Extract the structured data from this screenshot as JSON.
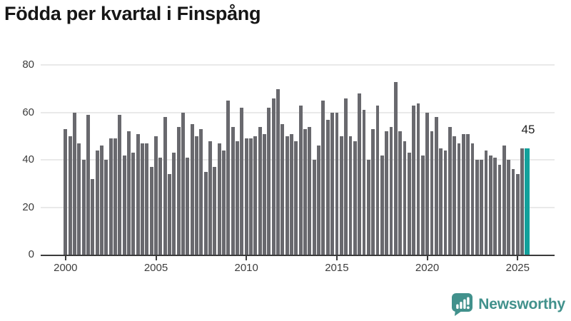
{
  "title": "Födda per kvartal i Finspång",
  "annotation": {
    "value": "45"
  },
  "footer": {
    "brand": "Newsworthy"
  },
  "colors": {
    "bar": "#69696e",
    "highlight": "#12a19c",
    "grid": "#e9e9e9",
    "axis": "#3b3b3b",
    "brand_teal": "#41918c",
    "title_text": "#161616"
  },
  "icons": {
    "footer_logo": "newsworthy-speech-bubble-bar-chart-icon"
  },
  "chart_data": {
    "type": "bar",
    "title": "Födda per kvartal i Finspång",
    "xlabel": "",
    "ylabel": "",
    "x_unit": "quarter",
    "start_year": 2000,
    "start_quarter": 1,
    "x_tick_labels": [
      "2000",
      "2005",
      "2010",
      "2015",
      "2020",
      "2025"
    ],
    "y_ticks": [
      0,
      20,
      40,
      60,
      80
    ],
    "ylim": [
      0,
      80
    ],
    "grid": true,
    "highlight_last_bar": true,
    "last_bar_label": "45",
    "series": [
      {
        "name": "Födda per kvartal",
        "values": [
          53,
          50,
          60,
          47,
          40,
          59,
          32,
          44,
          46,
          40,
          49,
          49,
          59,
          42,
          52,
          43,
          51,
          47,
          47,
          37,
          50,
          41,
          58,
          34,
          43,
          54,
          60,
          41,
          55,
          50,
          53,
          35,
          48,
          37,
          47,
          44,
          65,
          54,
          48,
          62,
          49,
          49,
          50,
          54,
          51,
          62,
          66,
          70,
          55,
          50,
          51,
          48,
          63,
          53,
          54,
          40,
          46,
          65,
          57,
          60,
          60,
          50,
          66,
          50,
          48,
          68,
          61,
          40,
          53,
          63,
          42,
          52,
          54,
          73,
          52,
          48,
          43,
          63,
          64,
          42,
          60,
          52,
          58,
          45,
          44,
          54,
          50,
          47,
          51,
          51,
          47,
          40,
          40,
          44,
          42,
          41,
          38,
          46,
          40,
          36,
          34,
          45,
          45
        ]
      }
    ]
  }
}
